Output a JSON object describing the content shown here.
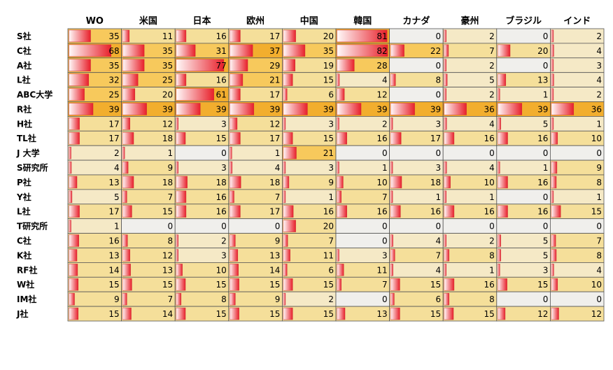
{
  "chart_data": {
    "type": "heatmap",
    "title": "",
    "columns": [
      "WO",
      "米国",
      "日本",
      "欧州",
      "中国",
      "韓国",
      "カナダ",
      "豪州",
      "ブラジル",
      "インド"
    ],
    "rows": [
      "S社",
      "C社",
      "A社",
      "L社",
      "ABC大学",
      "R社",
      "H社",
      "TL社",
      "J 大学",
      "S研究所",
      "P社",
      "Y社",
      "L社",
      "T研究所",
      "C社",
      "K社",
      "RF社",
      "W社",
      "IM社",
      "J社"
    ],
    "values": [
      [
        35,
        11,
        16,
        17,
        20,
        81,
        0,
        2,
        0,
        2
      ],
      [
        68,
        35,
        31,
        37,
        35,
        82,
        22,
        7,
        20,
        4
      ],
      [
        35,
        35,
        77,
        29,
        19,
        28,
        0,
        2,
        0,
        3
      ],
      [
        32,
        25,
        16,
        21,
        15,
        4,
        8,
        5,
        13,
        4
      ],
      [
        25,
        20,
        61,
        17,
        6,
        12,
        0,
        2,
        1,
        2
      ],
      [
        39,
        39,
        39,
        39,
        39,
        39,
        39,
        36,
        39,
        36
      ],
      [
        17,
        12,
        3,
        12,
        3,
        2,
        3,
        4,
        5,
        1
      ],
      [
        17,
        18,
        15,
        17,
        15,
        16,
        17,
        16,
        16,
        10
      ],
      [
        2,
        1,
        0,
        1,
        21,
        0,
        0,
        0,
        0,
        0
      ],
      [
        4,
        9,
        3,
        4,
        3,
        1,
        3,
        4,
        1,
        9
      ],
      [
        13,
        18,
        18,
        18,
        9,
        10,
        18,
        10,
        16,
        8
      ],
      [
        5,
        7,
        16,
        7,
        1,
        7,
        1,
        1,
        0,
        1
      ],
      [
        17,
        15,
        16,
        17,
        16,
        16,
        16,
        16,
        16,
        15
      ],
      [
        1,
        0,
        0,
        0,
        20,
        0,
        0,
        0,
        0,
        0
      ],
      [
        16,
        8,
        2,
        9,
        7,
        0,
        4,
        2,
        5,
        7
      ],
      [
        13,
        12,
        3,
        13,
        11,
        3,
        7,
        8,
        5,
        8
      ],
      [
        14,
        13,
        10,
        14,
        6,
        11,
        4,
        1,
        3,
        4
      ],
      [
        15,
        15,
        15,
        15,
        15,
        7,
        15,
        16,
        15,
        10
      ],
      [
        9,
        7,
        8,
        9,
        2,
        0,
        6,
        8,
        0,
        0
      ],
      [
        15,
        14,
        15,
        15,
        15,
        13,
        15,
        15,
        12,
        12
      ]
    ],
    "scale_max": 82,
    "colors": {
      "zero": "#f0efec",
      "very_low": "#f5e9c6",
      "low": "#f5df9a",
      "mid": "#f7c95c",
      "high": "#f2ae2e",
      "bar_start": "#fffafa",
      "bar_end": "#e8202a",
      "cell_border": "#555555"
    }
  }
}
